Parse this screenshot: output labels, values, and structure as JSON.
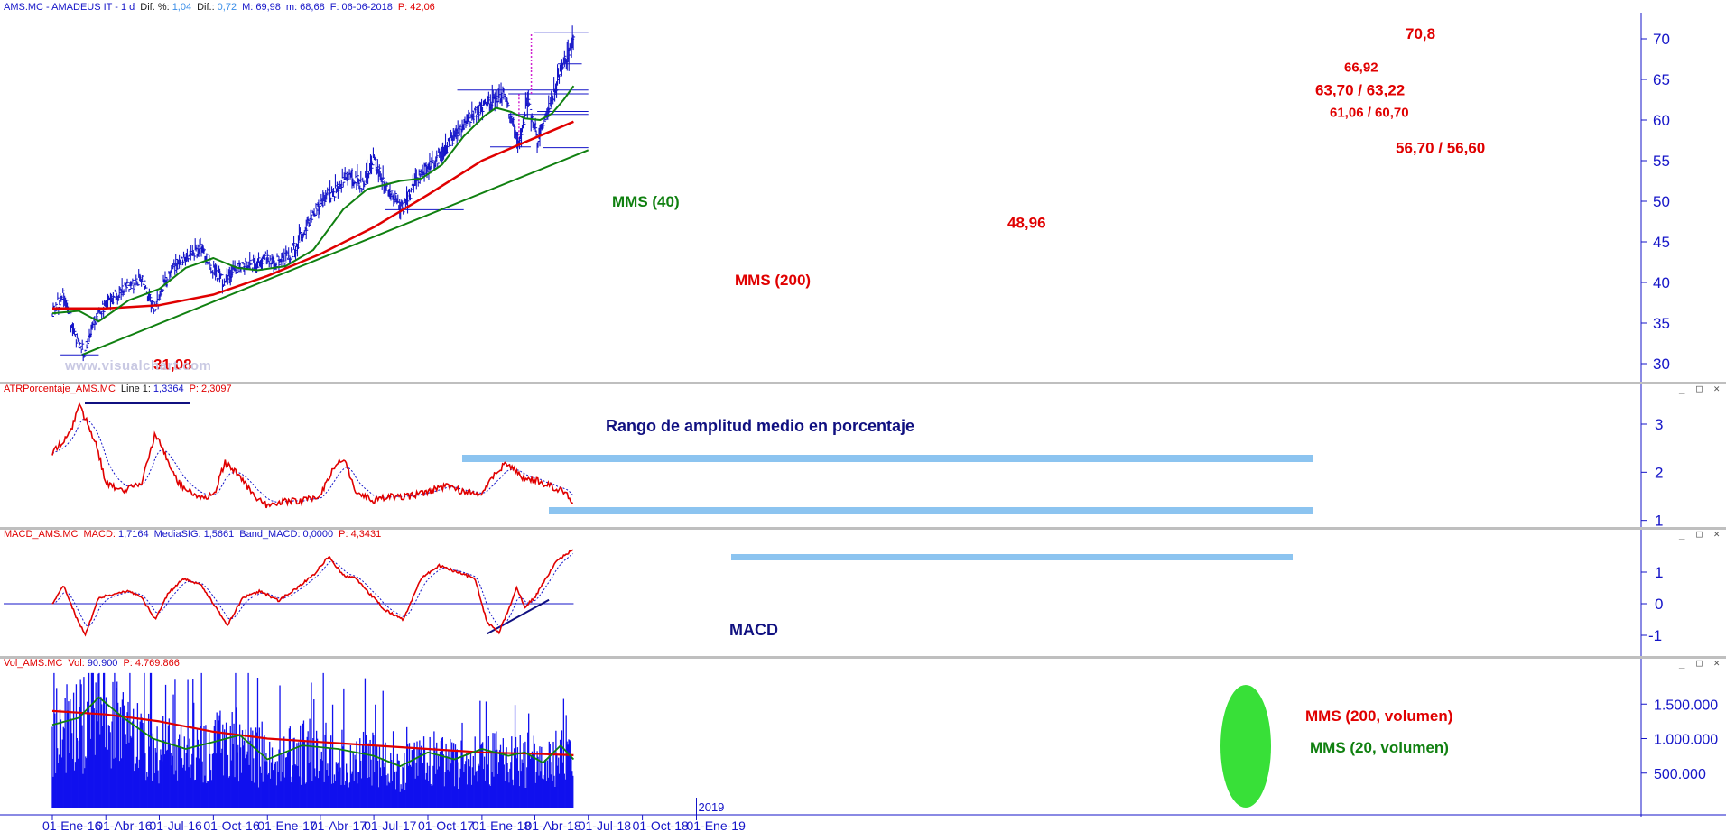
{
  "panels": {
    "price": {
      "header": {
        "symbol": "AMS.MC - AMADEUS IT -  1 d",
        "dif_pct_label": "Dif. %:",
        "dif_pct_value": "1,04",
        "dif_label": "Dif.:",
        "dif_value": "0,72",
        "max": "M: 69,98",
        "min": "m: 68,68",
        "date": "F: 06-06-2018",
        "price": "P: 42,06"
      }
    },
    "atr": {
      "header": {
        "name": "ATRPorcentaje_AMS.MC",
        "line_label": "Line 1:",
        "line_value": "1,3364",
        "price": "P: 2,3097"
      },
      "annotation": "Rango de amplitud medio en porcentaje"
    },
    "macd": {
      "header": {
        "name": "MACD_AMS.MC",
        "macd_label": "MACD:",
        "macd_value": "1,7164",
        "sig_label": "MediaSIG:",
        "sig_value": "1,5661",
        "band_label": "Band_MACD:",
        "band_value": "0,0000",
        "price": "P: 4,3431"
      },
      "annotation": "MACD"
    },
    "volume": {
      "header": {
        "name": "Vol_AMS.MC",
        "vol_label": "Vol:",
        "vol_value": "90.900",
        "price": "P: 4.769.866"
      }
    }
  },
  "window_buttons": "_ □ ✕",
  "watermark": "www.visualchart.com",
  "colors": {
    "price": "#1515c8",
    "ma200": "#e00000",
    "ma40": "#108010",
    "trend": "#108010",
    "highlight": "#8cc4f0",
    "volume": "#1010ee",
    "volume_blob": "#22dd22",
    "annotation_red": "#e00000",
    "annotation_green": "#108010",
    "annotation_navy": "#101080"
  },
  "chart_data": [
    {
      "type": "line",
      "name": "price",
      "x_ticks": [
        "01-Ene-16",
        "01-Abr-16",
        "01-Jul-16",
        "01-Oct-16",
        "01-Ene-17",
        "01-Abr-17",
        "01-Jul-17",
        "01-Oct-17",
        "01-Ene-18",
        "01-Abr-18",
        "01-Jul-18",
        "01-Oct-18",
        "01-Ene-19"
      ],
      "year_label": "2019",
      "ylim": [
        28,
        73
      ],
      "y_ticks": [
        30,
        35,
        40,
        45,
        50,
        55,
        60,
        65,
        70
      ],
      "series": [
        {
          "x": [
            "2016-01-01",
            "2016-01-20",
            "2016-02-10",
            "2016-02-24",
            "2016-03-10",
            "2016-04-01",
            "2016-04-20",
            "2016-05-10",
            "2016-06-01",
            "2016-06-15",
            "2016-06-24",
            "2016-07-10",
            "2016-08-01",
            "2016-08-25",
            "2016-09-10",
            "2016-09-30",
            "2016-10-20",
            "2016-11-05",
            "2016-11-25",
            "2016-12-15",
            "2017-01-01",
            "2017-01-20",
            "2017-02-10",
            "2017-03-01",
            "2017-03-20",
            "2017-04-10",
            "2017-05-01",
            "2017-05-20",
            "2017-06-10",
            "2017-06-30",
            "2017-07-20",
            "2017-08-10",
            "2017-08-20",
            "2017-09-10",
            "2017-09-30",
            "2017-10-20",
            "2017-11-10",
            "2017-11-30",
            "2017-12-20",
            "2018-01-10",
            "2018-01-20",
            "2018-02-05",
            "2018-02-20",
            "2018-03-05",
            "2018-03-20",
            "2018-04-05",
            "2018-04-20",
            "2018-05-05",
            "2018-05-20",
            "2018-06-06"
          ],
          "values": [
            36.5,
            38.5,
            33.0,
            31.5,
            35.0,
            37.5,
            38.5,
            39.5,
            40.5,
            38.0,
            36.5,
            40.0,
            42.5,
            43.5,
            44.0,
            41.5,
            40.0,
            41.5,
            42.0,
            42.5,
            43.0,
            42.5,
            43.5,
            46.0,
            48.5,
            50.5,
            51.5,
            53.5,
            52.0,
            55.0,
            52.0,
            50.0,
            49.0,
            52.5,
            54.0,
            55.5,
            57.5,
            59.5,
            61.0,
            62.0,
            62.5,
            63.5,
            60.0,
            57.0,
            62.5,
            57.5,
            60.5,
            63.5,
            67.0,
            69.98
          ]
        },
        {
          "name": "MMS (40)",
          "x": [
            "2016-01-01",
            "2016-02-15",
            "2016-03-20",
            "2016-05-10",
            "2016-07-01",
            "2016-08-15",
            "2016-10-01",
            "2016-11-10",
            "2016-12-15",
            "2017-02-01",
            "2017-03-20",
            "2017-05-10",
            "2017-06-20",
            "2017-08-15",
            "2017-09-20",
            "2017-10-25",
            "2017-12-01",
            "2018-01-05",
            "2018-01-25",
            "2018-02-20",
            "2018-03-15",
            "2018-04-10",
            "2018-04-30",
            "2018-05-20",
            "2018-06-06"
          ],
          "values": [
            36.2,
            36.5,
            35.2,
            37.8,
            39.2,
            41.8,
            43.0,
            41.8,
            41.5,
            42.0,
            44.0,
            49.0,
            51.5,
            52.5,
            52.8,
            54.5,
            58.0,
            60.5,
            61.5,
            61.0,
            60.2,
            60.0,
            60.8,
            62.5,
            64.2
          ]
        },
        {
          "name": "MMS (200)",
          "x": [
            "2016-01-01",
            "2016-04-01",
            "2016-07-01",
            "2016-10-01",
            "2017-01-01",
            "2017-04-01",
            "2017-07-01",
            "2017-10-01",
            "2018-01-01",
            "2018-04-01",
            "2018-06-06"
          ],
          "values": [
            36.8,
            36.8,
            37.2,
            38.5,
            40.8,
            43.5,
            46.8,
            50.8,
            55.0,
            57.8,
            59.8
          ]
        },
        {
          "name": "trend",
          "x": [
            "2016-02-20",
            "2018-07-01"
          ],
          "values": [
            31.08,
            56.3
          ]
        }
      ],
      "levels": [
        {
          "label": "70,8",
          "value": 70.8
        },
        {
          "label": "66,92",
          "value": 66.92
        },
        {
          "label": "63,70 / 63,22",
          "value": 63.7
        },
        {
          "label": "61,06 / 60,70",
          "value": 61.06
        },
        {
          "label": "56,70 / 56,60",
          "value": 56.7
        },
        {
          "label": "48,96",
          "value": 48.96
        },
        {
          "label": "31,08",
          "value": 31.08
        }
      ],
      "series_labels": [
        "MMS (40)",
        "MMS (200)"
      ]
    },
    {
      "type": "line",
      "name": "ATRPorcentaje",
      "ylim": [
        0.9,
        3.6
      ],
      "y_ticks": [
        1,
        2,
        3
      ],
      "series": [
        {
          "x": [
            "2016-01-01",
            "2016-01-15",
            "2016-02-01",
            "2016-02-15",
            "2016-03-01",
            "2016-03-15",
            "2016-04-01",
            "2016-05-01",
            "2016-06-01",
            "2016-06-24",
            "2016-07-10",
            "2016-08-01",
            "2016-09-01",
            "2016-10-01",
            "2016-10-20",
            "2016-11-10",
            "2016-12-10",
            "2017-01-01",
            "2017-02-01",
            "2017-03-01",
            "2017-04-01",
            "2017-04-20",
            "2017-05-10",
            "2017-06-01",
            "2017-07-01",
            "2017-08-01",
            "2017-09-01",
            "2017-10-01",
            "2017-11-01",
            "2017-12-01",
            "2018-01-01",
            "2018-01-20",
            "2018-02-10",
            "2018-03-10",
            "2018-04-10",
            "2018-05-01",
            "2018-05-20",
            "2018-06-06"
          ],
          "values": [
            2.4,
            2.6,
            2.8,
            3.4,
            3.0,
            2.6,
            1.8,
            1.6,
            1.8,
            2.8,
            2.4,
            1.8,
            1.5,
            1.5,
            2.2,
            2.0,
            1.5,
            1.3,
            1.4,
            1.4,
            1.5,
            2.0,
            2.3,
            1.6,
            1.4,
            1.5,
            1.5,
            1.6,
            1.7,
            1.6,
            1.5,
            1.9,
            2.2,
            1.9,
            1.8,
            1.7,
            1.6,
            1.34
          ]
        }
      ]
    },
    {
      "type": "line",
      "name": "MACD",
      "ylim": [
        -1.6,
        2.0
      ],
      "y_ticks": [
        -1,
        0,
        1
      ],
      "series": [
        {
          "x": [
            "2016-01-01",
            "2016-01-20",
            "2016-02-10",
            "2016-02-26",
            "2016-03-20",
            "2016-04-15",
            "2016-05-10",
            "2016-06-01",
            "2016-06-24",
            "2016-07-15",
            "2016-08-10",
            "2016-09-10",
            "2016-10-05",
            "2016-10-25",
            "2016-11-20",
            "2016-12-20",
            "2017-01-20",
            "2017-02-20",
            "2017-03-20",
            "2017-04-15",
            "2017-05-10",
            "2017-06-01",
            "2017-06-20",
            "2017-07-20",
            "2017-08-20",
            "2017-09-20",
            "2017-10-20",
            "2017-11-20",
            "2017-12-20",
            "2018-01-10",
            "2018-01-30",
            "2018-02-15",
            "2018-03-01",
            "2018-03-15",
            "2018-04-01",
            "2018-04-20",
            "2018-05-10",
            "2018-06-06"
          ],
          "values": [
            0.0,
            0.6,
            -0.4,
            -1.0,
            0.2,
            0.3,
            0.4,
            0.2,
            -0.5,
            0.3,
            0.8,
            0.6,
            -0.1,
            -0.7,
            0.2,
            0.4,
            0.1,
            0.5,
            0.9,
            1.5,
            0.9,
            0.8,
            0.4,
            -0.2,
            -0.5,
            0.8,
            1.2,
            1.0,
            0.8,
            -0.6,
            -0.9,
            -0.2,
            0.5,
            -0.1,
            0.2,
            0.8,
            1.4,
            1.72
          ]
        }
      ],
      "zero_line": 0
    },
    {
      "type": "bar",
      "name": "Volumen",
      "ylim": [
        0,
        2000000
      ],
      "y_ticks": [
        500000,
        1000000,
        1500000
      ],
      "y_tick_labels": [
        "500.000",
        "1.000.000",
        "1.500.000"
      ],
      "series": [
        {
          "name": "MMS (200, volumen)",
          "x": [
            "2016-01-01",
            "2016-04-01",
            "2016-07-01",
            "2016-10-01",
            "2017-01-01",
            "2017-04-01",
            "2017-07-01",
            "2017-10-01",
            "2018-01-01",
            "2018-04-01",
            "2018-06-06"
          ],
          "values": [
            1400000,
            1350000,
            1250000,
            1100000,
            1000000,
            950000,
            900000,
            850000,
            800000,
            780000,
            760000
          ]
        },
        {
          "name": "MMS (20, volumen)",
          "x": [
            "2016-01-01",
            "2016-02-15",
            "2016-03-20",
            "2016-05-01",
            "2016-06-20",
            "2016-08-15",
            "2016-10-01",
            "2016-11-15",
            "2017-01-01",
            "2017-03-01",
            "2017-05-01",
            "2017-07-01",
            "2017-08-15",
            "2017-10-01",
            "2017-11-15",
            "2018-01-01",
            "2018-02-15",
            "2018-03-15",
            "2018-04-15",
            "2018-05-15",
            "2018-06-06"
          ],
          "values": [
            1200000,
            1300000,
            1600000,
            1300000,
            1000000,
            850000,
            950000,
            1050000,
            700000,
            900000,
            850000,
            750000,
            600000,
            800000,
            700000,
            850000,
            750000,
            800000,
            650000,
            900000,
            700000
          ]
        }
      ],
      "series_labels": [
        "MMS (200, volumen)",
        "MMS (20, volumen)"
      ]
    }
  ]
}
